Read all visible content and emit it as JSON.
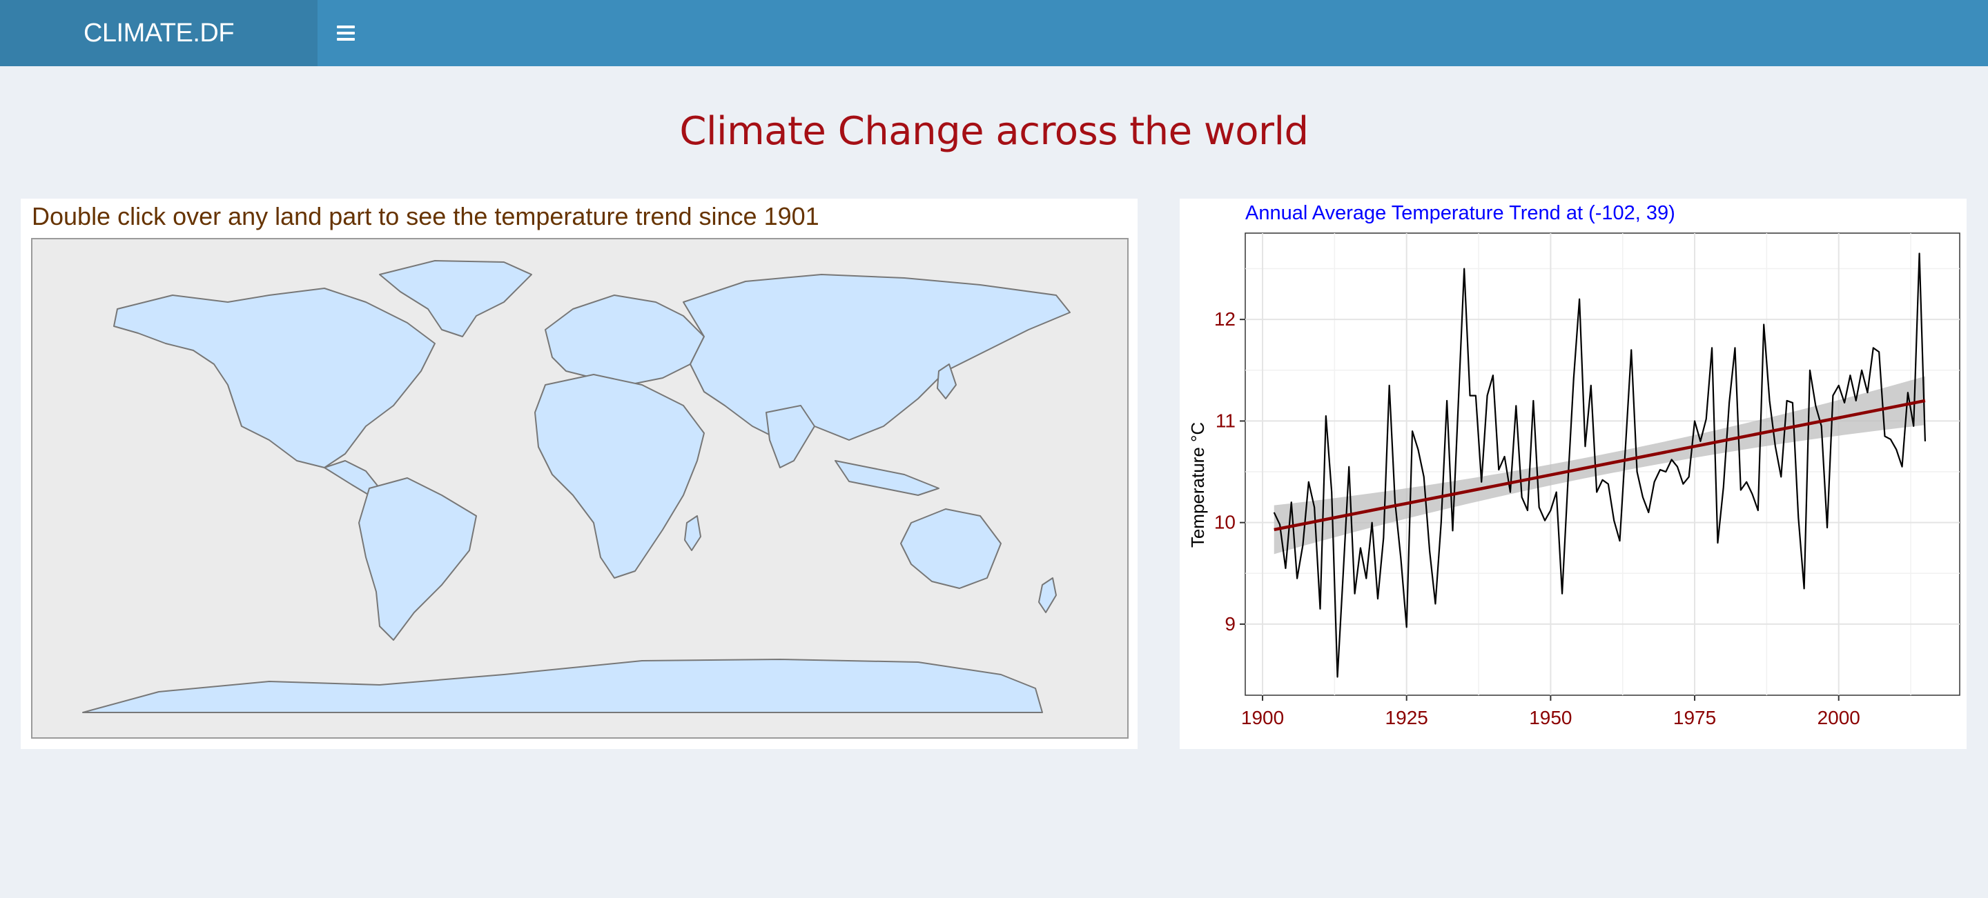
{
  "header": {
    "brand": "CLIMATE.DF",
    "menu_icon": "hamburger-icon"
  },
  "page_title": "Climate Change across the world",
  "map_panel": {
    "caption": "Double click over any land part to see the temperature trend since 1901",
    "land_color": "#cce5ff",
    "border_color": "#777777",
    "background_color": "#ebebeb"
  },
  "chart_data": {
    "type": "line",
    "title": "Annual Average Temperature Trend at (-102, 39)",
    "xlabel": "",
    "ylabel": "Temperature  °C",
    "xlim": [
      1897,
      2021
    ],
    "ylim": [
      8.3,
      12.85
    ],
    "x_ticks": [
      1900,
      1925,
      1950,
      1975,
      2000
    ],
    "x_tick_labels": [
      "1900",
      "1925",
      "1950",
      "1975",
      "2000"
    ],
    "y_ticks": [
      9,
      10,
      11,
      12
    ],
    "y_tick_labels": [
      "9",
      "10",
      "11",
      "12"
    ],
    "grid": true,
    "colors": {
      "title": "#0000ff",
      "ticks": "#8b0000",
      "series": "#000000",
      "trend": "#8b0000",
      "band": "#bebebe"
    },
    "series": [
      {
        "name": "",
        "x": [
          1902,
          1903,
          1904,
          1905,
          1906,
          1907,
          1908,
          1909,
          1910,
          1911,
          1912,
          1913,
          1914,
          1915,
          1916,
          1917,
          1918,
          1919,
          1920,
          1921,
          1922,
          1923,
          1924,
          1925,
          1926,
          1927,
          1928,
          1929,
          1930,
          1931,
          1932,
          1933,
          1934,
          1935,
          1936,
          1937,
          1938,
          1939,
          1940,
          1941,
          1942,
          1943,
          1944,
          1945,
          1946,
          1947,
          1948,
          1949,
          1950,
          1951,
          1952,
          1953,
          1954,
          1955,
          1956,
          1957,
          1958,
          1959,
          1960,
          1961,
          1962,
          1963,
          1964,
          1965,
          1966,
          1967,
          1968,
          1969,
          1970,
          1971,
          1972,
          1973,
          1974,
          1975,
          1976,
          1977,
          1978,
          1979,
          1980,
          1981,
          1982,
          1983,
          1984,
          1985,
          1986,
          1987,
          1988,
          1989,
          1990,
          1991,
          1992,
          1993,
          1994,
          1995,
          1996,
          1997,
          1998,
          1999,
          2000,
          2001,
          2002,
          2003,
          2004,
          2005,
          2006,
          2007,
          2008,
          2009,
          2010,
          2011,
          2012,
          2013,
          2014,
          2015
        ],
        "values": [
          10.1,
          9.98,
          9.55,
          10.2,
          9.45,
          9.78,
          10.4,
          10.15,
          9.15,
          11.05,
          10.3,
          8.48,
          9.5,
          10.55,
          9.3,
          9.75,
          9.45,
          10.0,
          9.25,
          9.85,
          11.35,
          10.2,
          9.65,
          8.97,
          10.9,
          10.72,
          10.45,
          9.72,
          9.2,
          10.0,
          11.2,
          9.92,
          11.2,
          12.5,
          11.25,
          11.25,
          10.4,
          11.25,
          11.45,
          10.52,
          10.65,
          10.3,
          11.15,
          10.25,
          10.12,
          11.2,
          10.15,
          10.02,
          10.12,
          10.3,
          9.3,
          10.4,
          11.42,
          12.2,
          10.75,
          11.35,
          10.3,
          10.42,
          10.38,
          10.02,
          9.82,
          10.75,
          11.7,
          10.5,
          10.25,
          10.1,
          10.4,
          10.52,
          10.5,
          10.62,
          10.55,
          10.38,
          10.45,
          11.0,
          10.8,
          11.02,
          11.72,
          9.8,
          10.35,
          11.18,
          11.72,
          10.32,
          10.4,
          10.28,
          10.12,
          11.95,
          11.2,
          10.75,
          10.45,
          11.2,
          11.18,
          10.05,
          9.35,
          11.5,
          11.15,
          10.95,
          9.95,
          11.25,
          11.35,
          11.18,
          11.45,
          11.2,
          11.5,
          11.28,
          11.72,
          11.68,
          10.85,
          10.82,
          10.72,
          10.55,
          11.28,
          10.95,
          12.65,
          10.8
        ]
      }
    ],
    "trend": {
      "x": [
        1902,
        2015
      ],
      "values": [
        9.93,
        11.2
      ],
      "band_half_width_start": 0.24,
      "band_half_width_mid": 0.1,
      "band_half_width_end": 0.24
    }
  }
}
